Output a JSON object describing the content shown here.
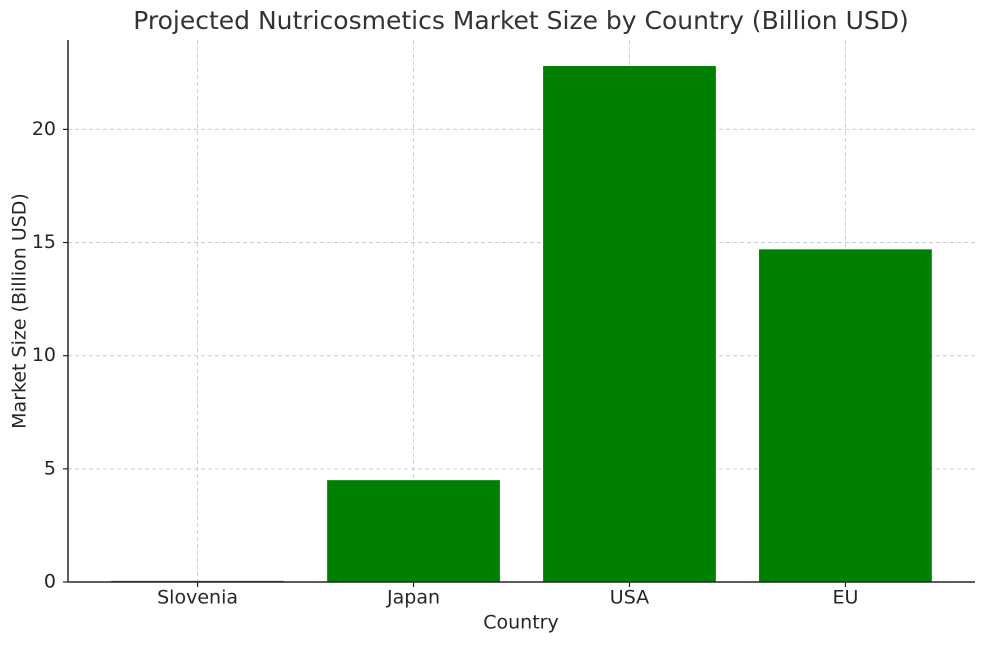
{
  "chart_data": {
    "type": "bar",
    "title": "Projected Nutricosmetics Market Size by Country (Billion USD)",
    "x_label": "Country",
    "y_label": "Market Size (Billion USD)",
    "categories": [
      "Slovenia",
      "Japan",
      "USA",
      "EU"
    ],
    "values": [
      0.05,
      4.5,
      22.8,
      14.7
    ],
    "color": "#008000",
    "ylim": [
      0,
      23.95
    ],
    "yticks": [
      0,
      5,
      10,
      15,
      20
    ],
    "grid": true
  }
}
